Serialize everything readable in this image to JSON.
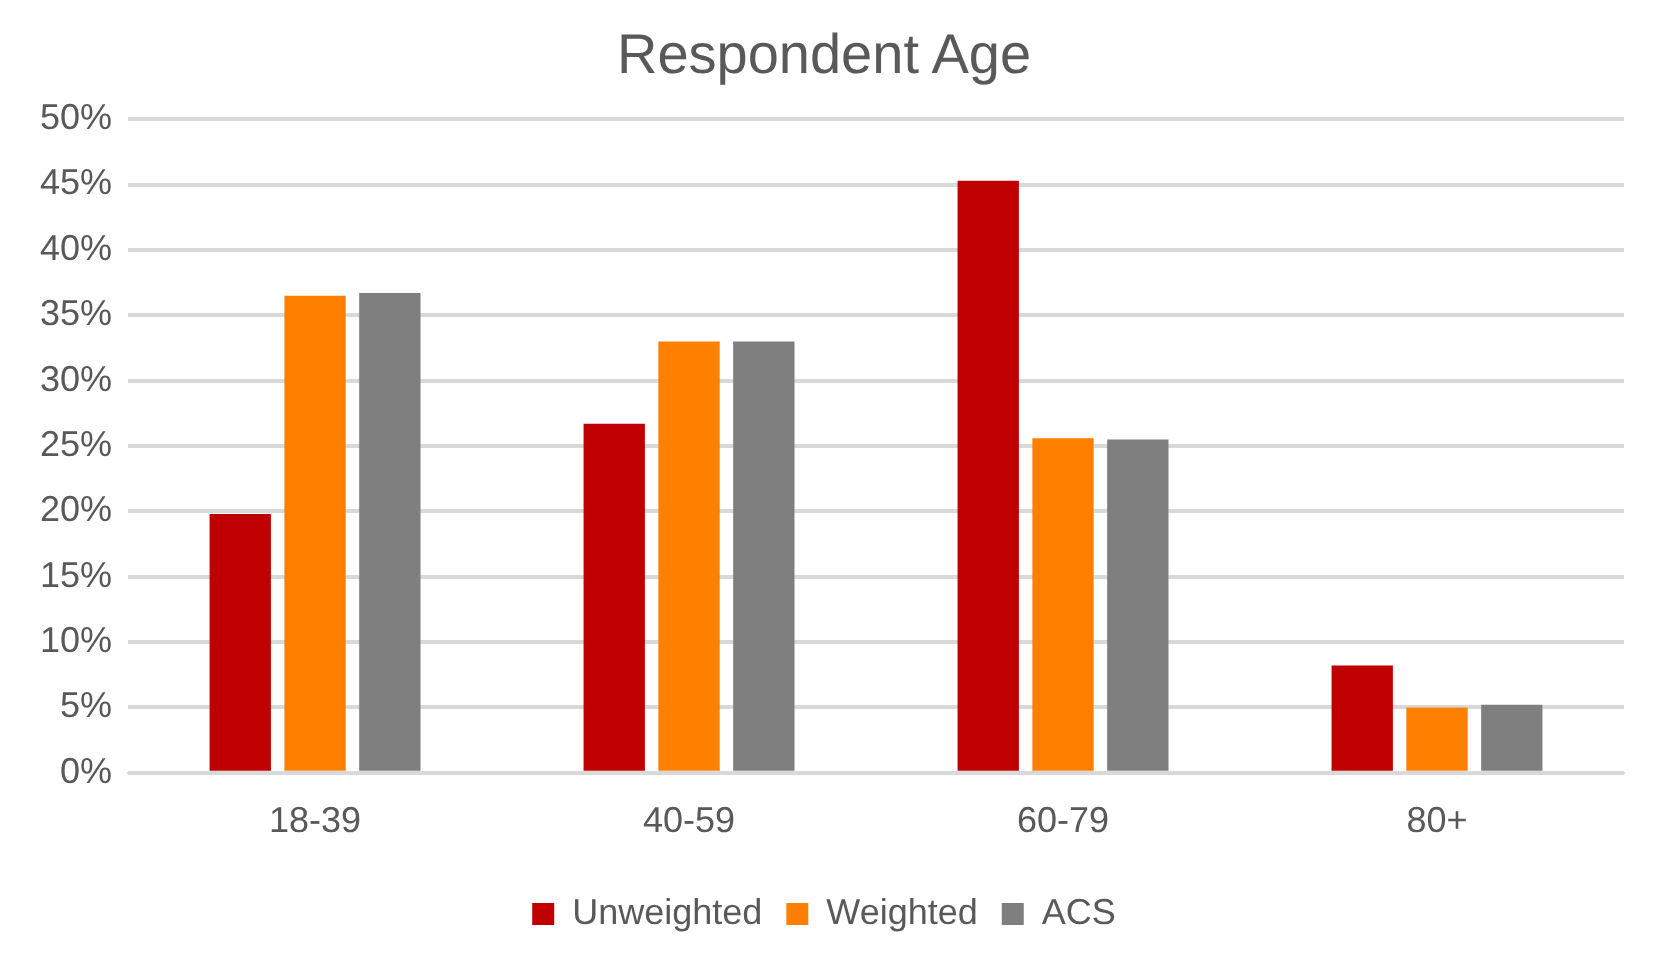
{
  "chart_data": {
    "type": "bar",
    "title": "Respondent Age",
    "categories": [
      "18-39",
      "40-59",
      "60-79",
      "80+"
    ],
    "series": [
      {
        "name": "Unweighted",
        "color": "#c00000",
        "values": [
          19.8,
          26.7,
          45.3,
          8.2
        ]
      },
      {
        "name": "Weighted",
        "color": "#ff8000",
        "values": [
          36.5,
          33,
          25.6,
          5
        ]
      },
      {
        "name": "ACS",
        "color": "#7f7f7f",
        "values": [
          36.7,
          33,
          25.5,
          5.2
        ]
      }
    ],
    "ylim": [
      0,
      50
    ],
    "yticks": [
      {
        "value": 0,
        "label": "0%"
      },
      {
        "value": 5,
        "label": "5%"
      },
      {
        "value": 10,
        "label": "10%"
      },
      {
        "value": 15,
        "label": "15%"
      },
      {
        "value": 20,
        "label": "20%"
      },
      {
        "value": 25,
        "label": "25%"
      },
      {
        "value": 30,
        "label": "30%"
      },
      {
        "value": 35,
        "label": "35%"
      },
      {
        "value": 40,
        "label": "40%"
      },
      {
        "value": 45,
        "label": "45%"
      },
      {
        "value": 50,
        "label": "50%"
      }
    ],
    "grid": "y",
    "legend": "bottom"
  }
}
